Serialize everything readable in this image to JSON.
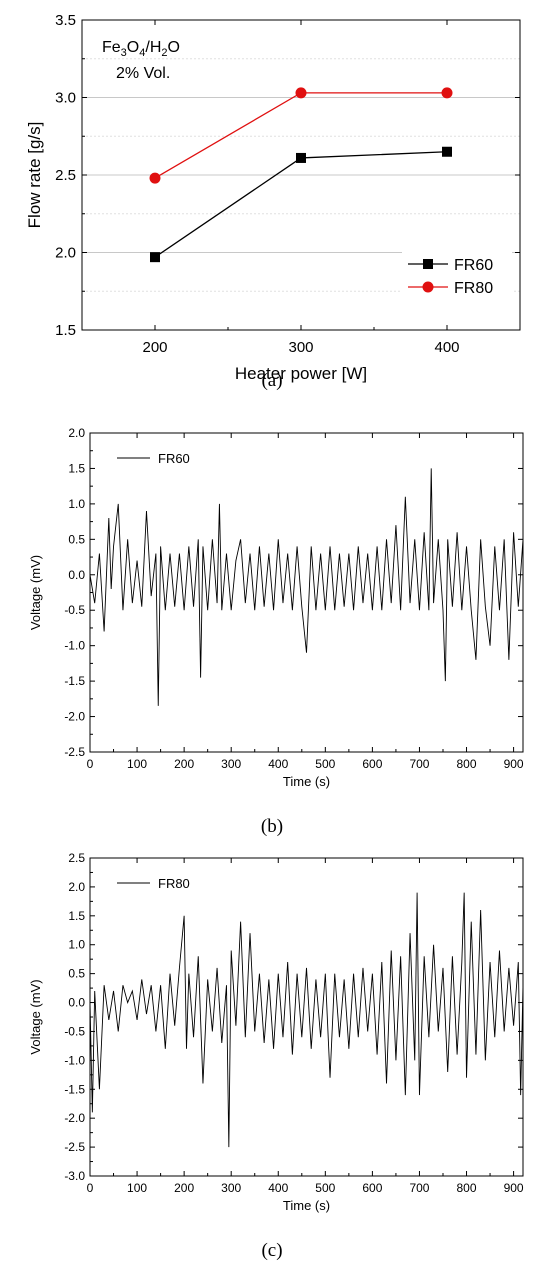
{
  "chart_data": [
    {
      "type": "line",
      "caption": "(a)",
      "xlabel": "Heater power [W]",
      "ylabel": "Flow rate [g/s]",
      "xlim": [
        150,
        450
      ],
      "ylim": [
        1.5,
        3.5
      ],
      "xticks": [
        "200",
        "300",
        "400"
      ],
      "yticks": [
        "1.5",
        "2.0",
        "2.5",
        "3.0",
        "3.5"
      ],
      "grid": "horizontal",
      "legend_position": "bottom-right",
      "annotation": {
        "line1_parts": [
          "Fe",
          "3",
          "O",
          "4",
          "/H",
          "2",
          "O"
        ],
        "line2": "2% Vol."
      },
      "x": [
        200,
        300,
        400
      ],
      "series": [
        {
          "name": "FR60",
          "values": [
            1.97,
            2.61,
            2.65
          ],
          "color": "#000000",
          "marker": "square"
        },
        {
          "name": "FR80",
          "values": [
            2.48,
            3.03,
            3.03
          ],
          "color": "#e01010",
          "marker": "circle"
        }
      ]
    },
    {
      "type": "line",
      "caption": "(b)",
      "xlabel": "Time (s)",
      "ylabel": "Voltage (mV)",
      "xlim": [
        0,
        920
      ],
      "ylim": [
        -2.5,
        2.0
      ],
      "xticks": [
        "0",
        "100",
        "200",
        "300",
        "400",
        "500",
        "600",
        "700",
        "800",
        "900"
      ],
      "yticks": [
        "-2.5",
        "-2.0",
        "-1.5",
        "-1.0",
        "-0.5",
        "0.0",
        "0.5",
        "1.0",
        "1.5",
        "2.0"
      ],
      "grid": "none",
      "legend_position": "top-left",
      "series": [
        {
          "name": "FR60",
          "color": "#000000",
          "x": [
            0,
            10,
            20,
            30,
            40,
            45,
            50,
            60,
            70,
            80,
            90,
            100,
            110,
            120,
            130,
            140,
            145,
            150,
            160,
            170,
            180,
            190,
            200,
            210,
            220,
            230,
            235,
            240,
            250,
            260,
            270,
            275,
            280,
            290,
            300,
            310,
            320,
            330,
            340,
            350,
            360,
            370,
            380,
            390,
            400,
            410,
            420,
            430,
            440,
            450,
            460,
            470,
            480,
            490,
            500,
            510,
            520,
            530,
            540,
            550,
            560,
            570,
            580,
            590,
            600,
            610,
            620,
            630,
            640,
            650,
            660,
            670,
            680,
            690,
            700,
            710,
            720,
            725,
            730,
            740,
            750,
            755,
            760,
            770,
            780,
            790,
            800,
            810,
            820,
            830,
            840,
            850,
            860,
            870,
            880,
            890,
            900,
            910,
            920
          ],
          "values": [
            0.0,
            -0.4,
            0.3,
            -0.8,
            0.8,
            -0.2,
            0.4,
            1.0,
            -0.5,
            0.5,
            -0.4,
            0.2,
            -0.45,
            0.9,
            -0.3,
            0.3,
            -1.85,
            0.4,
            -0.5,
            0.3,
            -0.45,
            0.3,
            -0.5,
            0.4,
            -0.45,
            0.5,
            -1.45,
            0.4,
            -0.5,
            0.5,
            -0.4,
            1.0,
            -0.5,
            0.3,
            -0.5,
            0.2,
            0.5,
            -0.4,
            0.3,
            -0.5,
            0.4,
            -0.45,
            0.3,
            -0.5,
            0.5,
            -0.4,
            0.3,
            -0.5,
            0.4,
            -0.45,
            -1.1,
            0.4,
            -0.5,
            0.3,
            -0.5,
            0.4,
            -0.5,
            0.3,
            -0.45,
            0.3,
            -0.5,
            0.4,
            -0.4,
            0.3,
            -0.5,
            0.4,
            -0.5,
            0.5,
            -0.4,
            0.7,
            -0.5,
            1.1,
            -0.4,
            0.5,
            -0.5,
            0.6,
            -0.5,
            1.5,
            -0.4,
            0.5,
            -0.5,
            -1.5,
            0.5,
            -0.45,
            0.6,
            -0.5,
            0.4,
            -0.5,
            -1.2,
            0.5,
            -0.45,
            -1.0,
            0.4,
            -0.5,
            0.5,
            -1.2,
            0.6,
            -0.45,
            0.5
          ]
        }
      ]
    },
    {
      "type": "line",
      "caption": "(c)",
      "xlabel": "Time (s)",
      "ylabel": "Voltage (mV)",
      "xlim": [
        0,
        920
      ],
      "ylim": [
        -3.0,
        2.5
      ],
      "xticks": [
        "0",
        "100",
        "200",
        "300",
        "400",
        "500",
        "600",
        "700",
        "800",
        "900"
      ],
      "yticks": [
        "-3.0",
        "-2.5",
        "-2.0",
        "-1.5",
        "-1.0",
        "-0.5",
        "0.0",
        "0.5",
        "1.0",
        "1.5",
        "2.0",
        "2.5"
      ],
      "grid": "none",
      "legend_position": "top-left",
      "series": [
        {
          "name": "FR80",
          "color": "#000000",
          "x": [
            0,
            5,
            10,
            20,
            30,
            40,
            50,
            60,
            70,
            80,
            90,
            100,
            110,
            120,
            130,
            140,
            150,
            160,
            170,
            180,
            190,
            200,
            205,
            210,
            220,
            230,
            240,
            250,
            260,
            270,
            280,
            290,
            295,
            300,
            310,
            320,
            330,
            340,
            350,
            360,
            370,
            380,
            390,
            400,
            410,
            420,
            430,
            440,
            450,
            460,
            470,
            480,
            490,
            500,
            510,
            520,
            530,
            540,
            550,
            560,
            570,
            580,
            590,
            600,
            610,
            620,
            630,
            640,
            650,
            660,
            670,
            680,
            690,
            695,
            700,
            710,
            720,
            730,
            740,
            750,
            760,
            770,
            780,
            790,
            795,
            800,
            810,
            820,
            830,
            840,
            850,
            860,
            870,
            880,
            890,
            900,
            910,
            915,
            920
          ],
          "values": [
            0.0,
            -1.9,
            0.2,
            -1.5,
            0.3,
            -0.3,
            0.2,
            -0.5,
            0.3,
            0.0,
            0.2,
            -0.3,
            0.4,
            -0.2,
            0.3,
            -0.5,
            0.3,
            -0.8,
            0.5,
            -0.4,
            0.6,
            1.5,
            -0.8,
            0.5,
            -0.6,
            0.8,
            -1.4,
            0.4,
            -0.5,
            0.6,
            -0.7,
            0.3,
            -2.5,
            0.9,
            -0.4,
            1.4,
            -0.6,
            1.2,
            -0.5,
            0.5,
            -0.7,
            0.4,
            -0.8,
            0.5,
            -0.6,
            0.7,
            -0.9,
            0.5,
            -0.6,
            0.6,
            -0.8,
            0.4,
            -0.6,
            0.5,
            -1.3,
            0.5,
            -0.6,
            0.4,
            -0.8,
            0.5,
            -0.6,
            0.6,
            -0.5,
            0.5,
            -0.9,
            0.7,
            -1.4,
            0.9,
            -1.0,
            0.8,
            -1.6,
            1.2,
            -1.0,
            1.9,
            -1.6,
            0.8,
            -0.6,
            1.0,
            -0.5,
            0.6,
            -1.2,
            0.8,
            -0.9,
            0.7,
            1.9,
            -1.3,
            1.4,
            -0.9,
            1.6,
            -1.0,
            0.7,
            -0.6,
            0.9,
            -0.5,
            0.6,
            -0.4,
            0.7,
            -1.6,
            0.3
          ]
        }
      ]
    }
  ]
}
